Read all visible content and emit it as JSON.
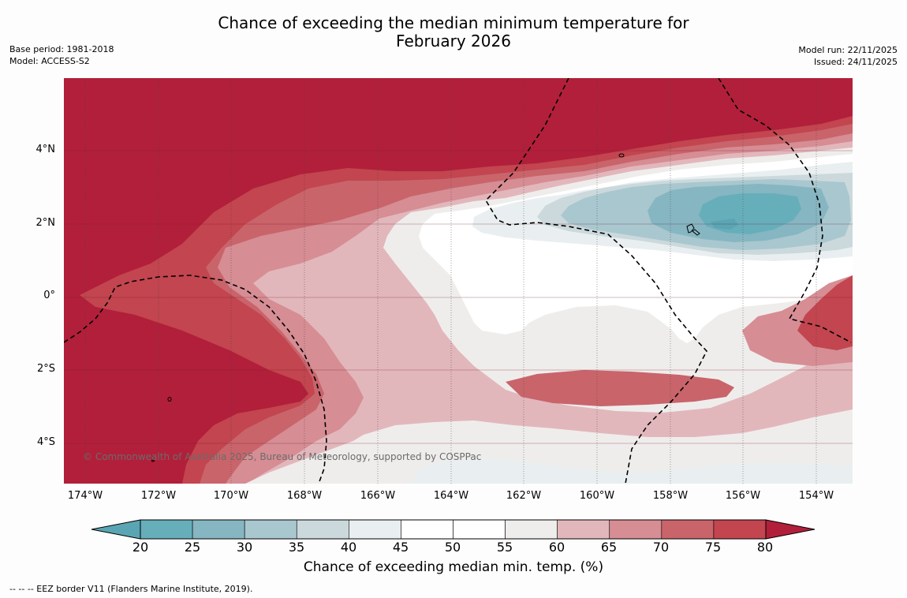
{
  "header": {
    "title_line1": "Chance of exceeding the median minimum temperature for",
    "title_line2": "February 2026",
    "base_period": "Base period: 1981-2018",
    "model": "Model: ACCESS-S2",
    "model_run": "Model run: 22/11/2025",
    "issued": "Issued: 24/11/2025"
  },
  "map": {
    "lat_labels": [
      "4°N",
      "2°N",
      "0°",
      "2°S",
      "4°S"
    ],
    "lon_labels": [
      "174°W",
      "172°W",
      "170°W",
      "168°W",
      "166°W",
      "164°W",
      "162°W",
      "160°W",
      "158°W",
      "156°W",
      "154°W"
    ],
    "copyright": "© Commonwealth of Australia 2025, Bureau of Meteorology, supported by COSPPac",
    "colors": {
      "c80plus": "#b21f3a",
      "c75_80": "#c2454f",
      "c70_75": "#c9646b",
      "c65_70": "#d68d94",
      "c60_65": "#e2b7bb",
      "c55_60": "#efedec",
      "c45_55": "#ffffff",
      "c40_45": "#e9eff0",
      "c35_40": "#cbd9dc",
      "c30_35": "#a9c7ce",
      "c25_30": "#86b6c2",
      "c20_25": "#67aebb"
    }
  },
  "legend": {
    "ticks": [
      "20",
      "25",
      "30",
      "35",
      "40",
      "45",
      "50",
      "55",
      "60",
      "65",
      "70",
      "75",
      "80"
    ],
    "colors": [
      "#67aebb",
      "#86b6c2",
      "#a9c7ce",
      "#cbd9dc",
      "#e9eff0",
      "#ffffff",
      "#ffffff",
      "#efedec",
      "#e2b7bb",
      "#d68d94",
      "#c9646b",
      "#c2454f"
    ],
    "low_color": "#5aa5b3",
    "high_color": "#b21f3a",
    "title": "Chance of exceeding median min. temp. (%)"
  },
  "footnote": "--  --  -- EEZ border V11 (Flanders Marine Institute, 2019)."
}
